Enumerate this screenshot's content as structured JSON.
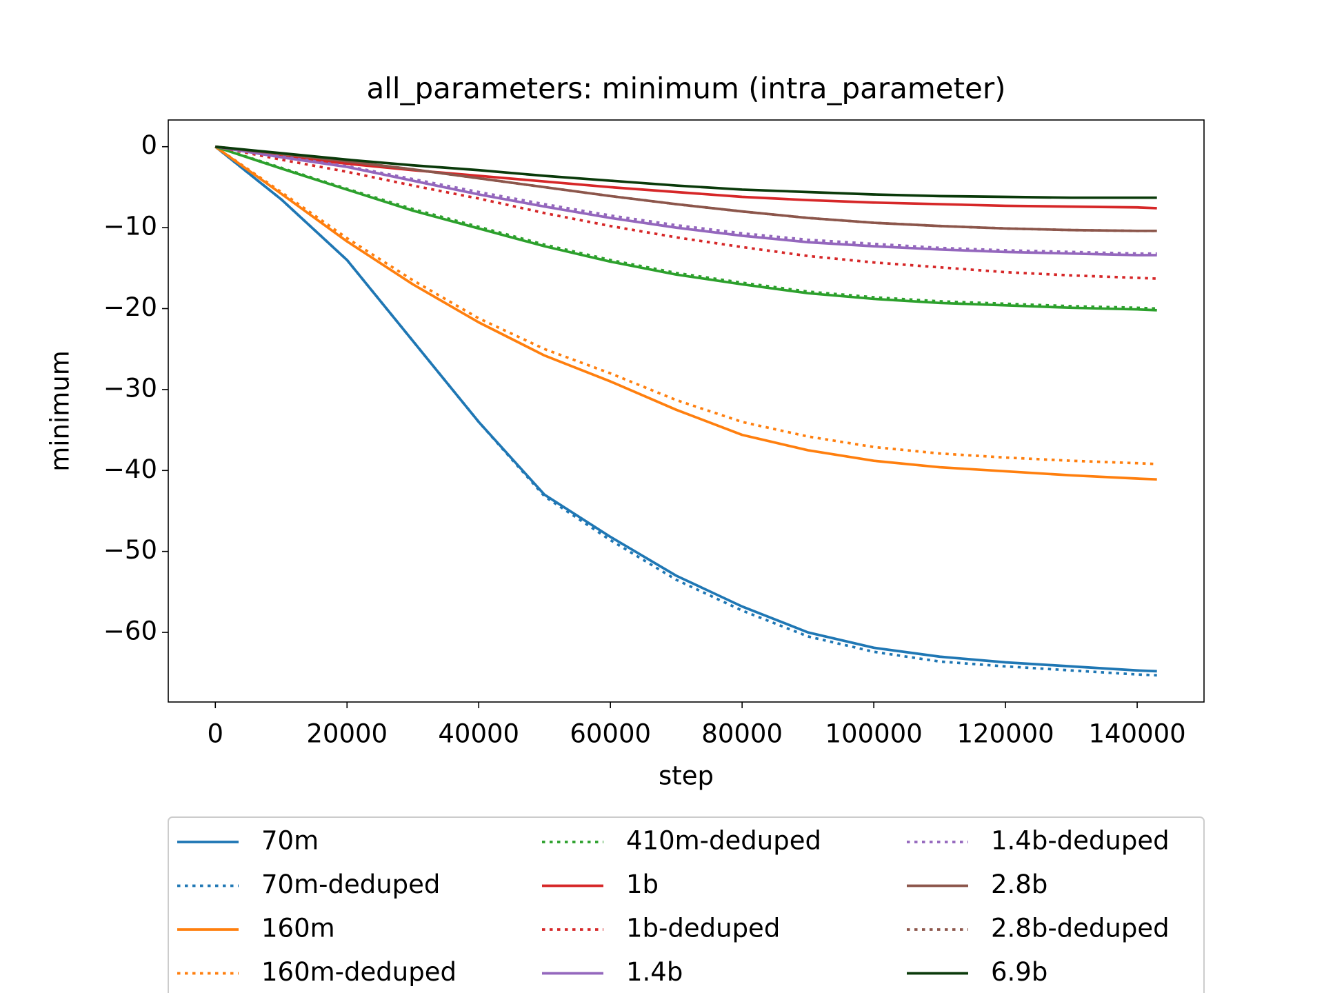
{
  "chart_data": {
    "type": "line",
    "title": "all_parameters: minimum (intra_parameter)",
    "x_label": "step",
    "y_label": "minimum",
    "x": [
      0,
      10000,
      20000,
      30000,
      40000,
      50000,
      60000,
      70000,
      80000,
      90000,
      100000,
      110000,
      120000,
      130000,
      140000,
      143000
    ],
    "series": [
      {
        "name": "70m",
        "color": "#1f77b4",
        "linestyle": "solid",
        "values": [
          0,
          -6.5,
          -14,
          -24,
          -34,
          -43,
          -48.2,
          -53,
          -56.8,
          -60,
          -61.9,
          -63,
          -63.7,
          -64.2,
          -64.7,
          -64.8
        ]
      },
      {
        "name": "70m-deduped",
        "color": "#1f77b4",
        "linestyle": "dotted",
        "values": [
          0,
          -6.5,
          -14,
          -24,
          -34,
          -43.2,
          -48.6,
          -53.5,
          -57.3,
          -60.5,
          -62.4,
          -63.6,
          -64.2,
          -64.7,
          -65.2,
          -65.3
        ]
      },
      {
        "name": "160m",
        "color": "#ff7f0e",
        "linestyle": "solid",
        "values": [
          0,
          -5.8,
          -11.7,
          -17,
          -21.7,
          -25.8,
          -29,
          -32.5,
          -35.6,
          -37.5,
          -38.8,
          -39.6,
          -40.1,
          -40.6,
          -41,
          -41.1
        ]
      },
      {
        "name": "160m-deduped",
        "color": "#ff7f0e",
        "linestyle": "dotted",
        "values": [
          0,
          -5.6,
          -11.3,
          -16.5,
          -21.2,
          -25,
          -28,
          -31.3,
          -34,
          -35.8,
          -37.1,
          -37.9,
          -38.4,
          -38.8,
          -39.1,
          -39.2
        ]
      },
      {
        "color": "#2ca02c",
        "linestyle": "solid",
        "values": [
          0,
          -2.7,
          -5.3,
          -7.9,
          -10.1,
          -12.3,
          -14.2,
          -15.8,
          -17,
          -18.1,
          -18.8,
          -19.3,
          -19.6,
          -19.9,
          -20.1,
          -20.2
        ]
      },
      {
        "name": "410m-deduped",
        "color": "#2ca02c",
        "linestyle": "dotted",
        "values": [
          0,
          -2.6,
          -5.2,
          -7.7,
          -9.9,
          -12.1,
          -14,
          -15.6,
          -16.8,
          -17.9,
          -18.6,
          -19.1,
          -19.4,
          -19.7,
          -19.9,
          -20
        ]
      },
      {
        "name": "1b",
        "color": "#d62728",
        "linestyle": "solid",
        "values": [
          0,
          -1.2,
          -2.1,
          -2.9,
          -3.6,
          -4.3,
          -5,
          -5.6,
          -6.2,
          -6.6,
          -6.9,
          -7.1,
          -7.3,
          -7.4,
          -7.5,
          -7.6
        ]
      },
      {
        "name": "1b-deduped",
        "color": "#d62728",
        "linestyle": "dotted",
        "values": [
          0,
          -1.6,
          -3.1,
          -4.8,
          -6.4,
          -8.2,
          -9.8,
          -11.2,
          -12.4,
          -13.5,
          -14.3,
          -14.9,
          -15.5,
          -15.9,
          -16.2,
          -16.3
        ]
      },
      {
        "name": "1.4b",
        "color": "#9467bd",
        "linestyle": "solid",
        "values": [
          0,
          -1.3,
          -2.5,
          -4.2,
          -5.9,
          -7.4,
          -8.8,
          -10,
          -11,
          -11.8,
          -12.3,
          -12.7,
          -13,
          -13.2,
          -13.4,
          -13.4
        ]
      },
      {
        "name": "1.4b-deduped",
        "color": "#9467bd",
        "linestyle": "dotted",
        "values": [
          0,
          -1.2,
          -2.4,
          -4,
          -5.6,
          -7.1,
          -8.5,
          -9.7,
          -10.7,
          -11.5,
          -12,
          -12.5,
          -12.8,
          -13,
          -13.2,
          -13.2
        ]
      },
      {
        "name": "2.8b",
        "color": "#8c564b",
        "linestyle": "solid",
        "values": [
          0,
          -0.9,
          -1.8,
          -2.8,
          -3.9,
          -5,
          -6.1,
          -7.1,
          -8,
          -8.8,
          -9.4,
          -9.8,
          -10.1,
          -10.3,
          -10.4,
          -10.4
        ]
      },
      {
        "name": "2.8b-deduped",
        "color": "#8c564b",
        "linestyle": "dotted",
        "values": [
          0,
          -0.9,
          -1.8,
          -2.8,
          -3.9,
          -5,
          -6.1,
          -7.1,
          -8,
          -8.8,
          -9.4,
          -9.8,
          -10.1,
          -10.3,
          -10.4,
          -10.4
        ]
      },
      {
        "name": "6.9b",
        "color": "#0a3a0a",
        "linestyle": "solid",
        "values": [
          0,
          -0.8,
          -1.6,
          -2.3,
          -2.9,
          -3.6,
          -4.2,
          -4.8,
          -5.3,
          -5.6,
          -5.9,
          -6.1,
          -6.2,
          -6.3,
          -6.3,
          -6.3
        ]
      }
    ],
    "xlim": [
      -7150,
      150150
    ],
    "ylim": [
      -68.6,
      3.3
    ],
    "xticks": [
      0,
      20000,
      40000,
      60000,
      80000,
      100000,
      120000,
      140000
    ],
    "yticks": [
      {
        "value": -60,
        "label": "−60"
      },
      {
        "value": -50,
        "label": "−50"
      },
      {
        "value": -40,
        "label": "−40"
      },
      {
        "value": -30,
        "label": "−30"
      },
      {
        "value": -20,
        "label": "−20"
      },
      {
        "value": -10,
        "label": "−10"
      },
      0
    ],
    "legend": "below",
    "legend_columns": 3,
    "grid": false
  }
}
